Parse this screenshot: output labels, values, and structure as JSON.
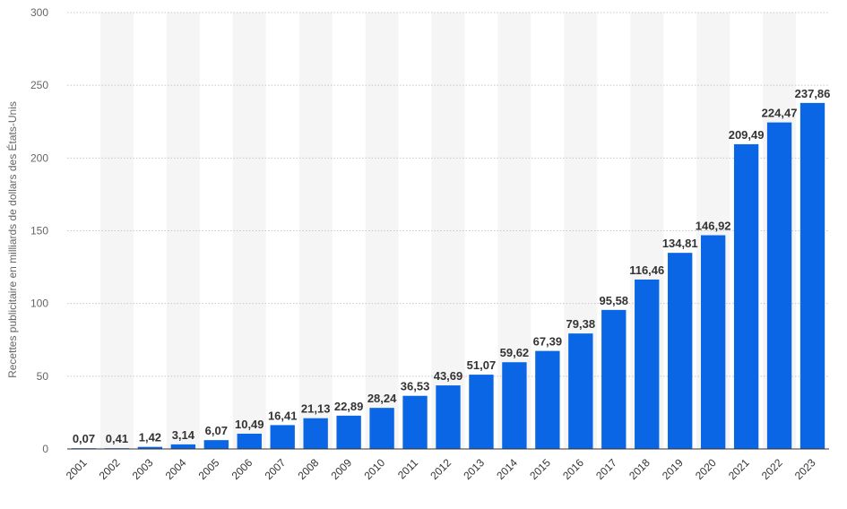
{
  "chart_data": {
    "type": "bar",
    "categories": [
      "2001",
      "2002",
      "2003",
      "2004",
      "2005",
      "2006",
      "2007",
      "2008",
      "2009",
      "2010",
      "2011",
      "2012",
      "2013",
      "2014",
      "2015",
      "2016",
      "2017",
      "2018",
      "2019",
      "2020",
      "2021",
      "2022",
      "2023"
    ],
    "values": [
      0.07,
      0.41,
      1.42,
      3.14,
      6.07,
      10.49,
      16.41,
      21.13,
      22.89,
      28.24,
      36.53,
      43.69,
      51.07,
      59.62,
      67.39,
      79.38,
      95.58,
      116.46,
      134.81,
      146.92,
      209.49,
      224.47,
      237.86
    ],
    "value_labels": [
      "0,07",
      "0,41",
      "1,42",
      "3,14",
      "6,07",
      "10,49",
      "16,41",
      "21,13",
      "22,89",
      "28,24",
      "36,53",
      "43,69",
      "51,07",
      "59,62",
      "67,39",
      "79,38",
      "95,58",
      "116,46",
      "134,81",
      "146,92",
      "209,49",
      "224,47",
      "237,86"
    ],
    "ylabel": "Recettes publicitaire en milliards de dollars des États-Unis",
    "xlabel": "",
    "ylim": [
      0,
      300
    ],
    "yticks": [
      0,
      50,
      100,
      150,
      200,
      250,
      300
    ],
    "grid": true,
    "legend": "none",
    "bar_color": "#0a66e4",
    "band_color": "#f5f5f5"
  }
}
